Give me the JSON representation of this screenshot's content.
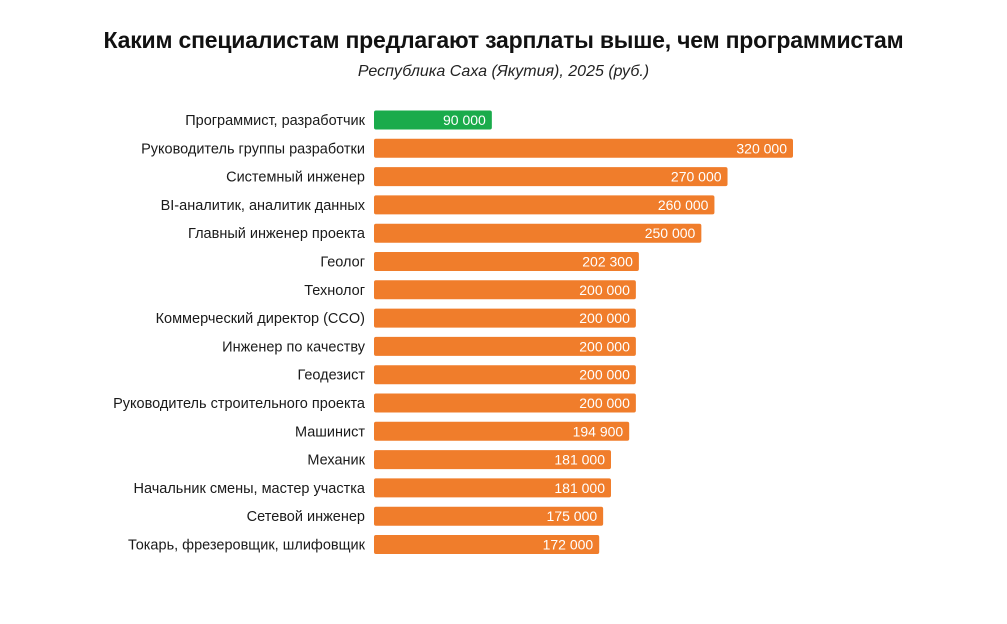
{
  "chart_data": {
    "type": "bar",
    "orientation": "horizontal",
    "title": "Каким специалистам предлагают зарплаты выше, чем программистам",
    "subtitle": "Республика Саха (Якутия), 2025 (руб.)",
    "categories": [
      "Программист, разработчик",
      "Руководитель группы разработки",
      "Системный инженер",
      "BI-аналитик, аналитик данных",
      "Главный инженер проекта",
      "Геолог",
      "Технолог",
      "Коммерческий директор (CCO)",
      "Инженер по качеству",
      "Геодезист",
      "Руководитель строительного проекта",
      "Машинист",
      "Механик",
      "Начальник смены, мастер участка",
      "Сетевой инженер",
      "Токарь, фрезеровщик, шлифовщик"
    ],
    "values": [
      90000,
      320000,
      270000,
      260000,
      250000,
      202300,
      200000,
      200000,
      200000,
      200000,
      200000,
      194900,
      181000,
      181000,
      175000,
      172000
    ],
    "value_labels": [
      "90 000",
      "320 000",
      "270 000",
      "260 000",
      "250 000",
      "202 300",
      "200 000",
      "200 000",
      "200 000",
      "200 000",
      "200 000",
      "194 900",
      "181 000",
      "181 000",
      "175 000",
      "172 000"
    ],
    "highlight_index": 0,
    "colors": {
      "highlight": "#1aab4b",
      "default": "#f07d2b"
    },
    "xlim": [
      0,
      320000
    ],
    "grid": false,
    "legend": "none",
    "xlabel": "",
    "ylabel": ""
  }
}
